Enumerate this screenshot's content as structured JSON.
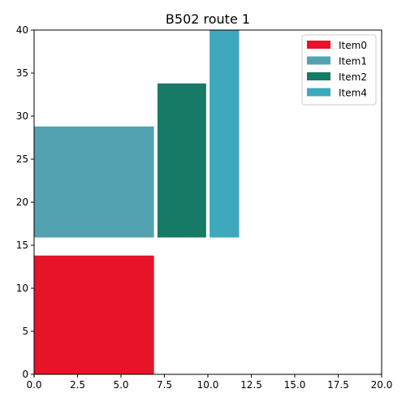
{
  "chart_data": {
    "type": "bar",
    "title": "B502 route 1",
    "xlabel": "",
    "ylabel": "",
    "xlim": [
      0,
      20
    ],
    "ylim": [
      0,
      40
    ],
    "x_ticks": [
      "0.0",
      "2.5",
      "5.0",
      "7.5",
      "10.0",
      "12.5",
      "15.0",
      "17.5",
      "20.0"
    ],
    "y_ticks": [
      "0",
      "5",
      "10",
      "15",
      "20",
      "25",
      "30",
      "35",
      "40"
    ],
    "grid": false,
    "legend_position": "top-right",
    "series": [
      {
        "name": "Item0",
        "color": "#e81328",
        "x0": 0,
        "x1": 6.9,
        "y0": 0,
        "y1": 13.8
      },
      {
        "name": "Item1",
        "color": "#53a2b1",
        "x0": 0,
        "x1": 6.9,
        "y0": 15.9,
        "y1": 28.8
      },
      {
        "name": "Item2",
        "color": "#177a66",
        "x0": 7.1,
        "x1": 9.9,
        "y0": 15.9,
        "y1": 33.8
      },
      {
        "name": "Item4",
        "color": "#3da8be",
        "x0": 10.1,
        "x1": 11.8,
        "y0": 15.9,
        "y1": 40
      }
    ]
  }
}
